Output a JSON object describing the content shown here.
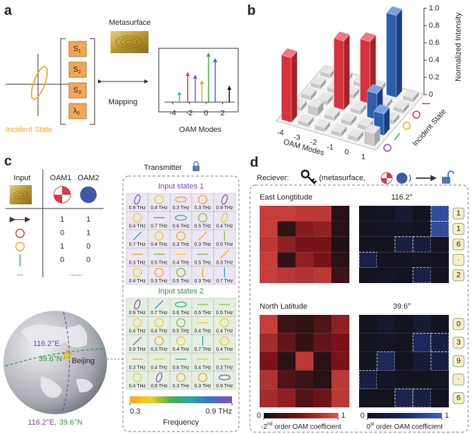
{
  "panel_a": {
    "label": "a",
    "metasurface": "Metasurface",
    "params": [
      {
        "base": "S",
        "sub": "1"
      },
      {
        "base": "S",
        "sub": "2"
      },
      {
        "base": "S",
        "sub": "3"
      },
      {
        "base": "λ",
        "sub": "0"
      }
    ],
    "mapping": "Mapping",
    "incident_state": "Incident State",
    "oam_modes": "OAM Modes",
    "spectrum": {
      "type": "stem",
      "x": [
        -3.2,
        -2.2,
        -1.3,
        -0.5,
        0.3,
        1.1,
        2.8
      ],
      "values": [
        0.2,
        0.55,
        0.5,
        0.4,
        0.9,
        0.8,
        0.3
      ],
      "colors": [
        "#3bbfd0",
        "#d83a4a",
        "#8a4fbf",
        "#f5a623",
        "#3aaa50",
        "#2d6fd0",
        "#111111"
      ],
      "xlim": [
        -5.5,
        3.7
      ],
      "xticks": [
        -4,
        -2,
        0,
        2
      ],
      "ylim": [
        0,
        1
      ]
    }
  },
  "panel_b": {
    "label": "b",
    "type": "bar3d",
    "zlabel": "Normalized Intensity",
    "xlabel": "OAM Modes",
    "ylabel": "Incident State",
    "categories": [
      -4,
      -3,
      -2,
      -1,
      0,
      1
    ],
    "values": [
      [
        0.05,
        0.05,
        0.05,
        0.05,
        0.95,
        0.05
      ],
      [
        0.05,
        0.05,
        0.05,
        0.72,
        0.05,
        0.05
      ],
      [
        0.05,
        0.05,
        0.8,
        0.05,
        0.3,
        0.05
      ],
      [
        0.05,
        0.1,
        0.05,
        0.05,
        0.05,
        0.25
      ],
      [
        0.75,
        0.05,
        0.05,
        0.05,
        0.05,
        0.15
      ]
    ],
    "state_colors": [
      "#d83a4a",
      "#d83a4a",
      "#f5a623",
      "#3aaa50",
      "#8a4fbf"
    ],
    "colors": {
      "negative": [
        "#d8323c",
        "#a82028",
        "#f07880"
      ],
      "positive": [
        "#2d5fb0",
        "#1d3f80",
        "#7aa2dc"
      ],
      "low": [
        "#c8c8c8",
        "#a4a4a4",
        "#e6e6e6"
      ]
    },
    "zlim": [
      0,
      1
    ],
    "zticks": [
      0,
      0.2,
      0.4,
      0.6,
      0.8,
      {
        "value": 1,
        "label": "1.0"
      }
    ]
  },
  "panel_c": {
    "label": "c",
    "table": {
      "headers": [
        "Input",
        "OAM1",
        "OAM2"
      ],
      "rows": [
        [
          1,
          1
        ],
        [
          0,
          1
        ],
        [
          1,
          0
        ],
        [
          0,
          0
        ]
      ],
      "ellipsis": [
        "...",
        "......"
      ]
    },
    "globe": {
      "lon": "116.2°E",
      "lat": "39.6°N",
      "city": "Beijing",
      "caption_lon": "116.2°E,",
      "caption_lat": "39.6°N"
    },
    "transmitter": "Transmitter",
    "grid1": {
      "title": "Input states 1",
      "cells": [
        [
          {
            "value": 0.9,
            "label": "0.9 THz"
          },
          {
            "value": 0.4,
            "label": "0.4 THz"
          },
          {
            "value": 0.3,
            "label": "0.3 THz"
          },
          {
            "value": 0.3,
            "label": "0.3 THz"
          },
          {
            "value": 0.9,
            "label": "0.9 THz"
          }
        ],
        [
          {
            "value": 0.4,
            "label": "0.4 THz"
          },
          {
            "value": 0.7,
            "label": "0.7 THz"
          },
          {
            "value": 0.6,
            "label": "0.6 THz"
          },
          {
            "value": 0.5,
            "label": "0.5 THz"
          },
          {
            "value": 0.4,
            "label": "0.4 THz"
          }
        ],
        [
          {
            "value": 0.7,
            "label": "0.7 THz"
          },
          {
            "value": 0.4,
            "label": "0.4 THz"
          },
          {
            "value": 0.3,
            "label": "0.3 THz"
          },
          {
            "value": 0.3,
            "label": "0.3 THz"
          },
          {
            "value": 0.5,
            "label": "0.5 THz"
          }
        ],
        [
          {
            "value": 0.3,
            "label": "0.3 THz"
          },
          {
            "value": 0.5,
            "label": "0.5 THz"
          },
          {
            "value": 0.4,
            "label": "0.4 THz"
          },
          {
            "value": 0.5,
            "label": "0.5 THz"
          },
          {
            "value": 0.3,
            "label": "0.3 THz"
          }
        ],
        [
          {
            "value": 0.4,
            "label": "0.4 THz"
          },
          {
            "value": 0.3,
            "label": "0.3 THz"
          },
          {
            "value": 0.5,
            "label": "0.5 THz"
          },
          {
            "value": 0.3,
            "label": "0.3 THz"
          },
          {
            "value": 0.7,
            "label": "0.7 THz"
          }
        ]
      ]
    },
    "grid2": {
      "title": "Input states 2",
      "cells": [
        [
          {
            "value": 0.9,
            "label": "0.9 THz"
          },
          {
            "value": 0.7,
            "label": "0.7 THz"
          },
          {
            "value": 0.6,
            "label": "0.6 THz"
          },
          {
            "value": 0.5,
            "label": "0.5 THz"
          },
          {
            "value": 0.5,
            "label": "0.5 THz"
          }
        ],
        [
          {
            "value": 0.4,
            "label": "0.4 THz"
          },
          {
            "value": 0.4,
            "label": "0.4 THz"
          },
          {
            "value": 0.5,
            "label": "0.5 THz"
          },
          {
            "value": 0.4,
            "label": "0.4 THz"
          },
          {
            "value": 0.4,
            "label": "0.4 THz"
          }
        ],
        [
          {
            "value": 0.9,
            "label": "0.9 THz"
          },
          {
            "value": 0.3,
            "label": "0.3 THz"
          },
          {
            "value": 0.4,
            "label": "0.4 THz"
          },
          {
            "value": 0.7,
            "label": "0.7 THz"
          },
          {
            "value": 0.4,
            "label": "0.4 THz"
          }
        ],
        [
          {
            "value": 0.3,
            "label": "0.3 THz"
          },
          {
            "value": 0.4,
            "label": "0.4 THz"
          },
          {
            "value": 0.6,
            "label": "0.6 THz"
          },
          {
            "value": 0.4,
            "label": "0.4 THz"
          },
          {
            "value": 0.3,
            "label": "0.3 THz"
          }
        ],
        [
          {
            "value": 0.4,
            "label": "0.4 THz"
          },
          {
            "value": 0.9,
            "label": "0.9 THz"
          },
          {
            "value": 0.3,
            "label": "0.3 THz"
          },
          {
            "value": 0.3,
            "label": "0.3 THz"
          },
          {
            "value": 0.9,
            "label": "0.9 THz"
          }
        ]
      ]
    },
    "colorbar": {
      "range": [
        0.3,
        0.9
      ],
      "ticks": [
        0.3,
        {
          "value": 0.9,
          "label": "0.9 THz"
        }
      ],
      "label": "Frequency"
    }
  },
  "panel_d": {
    "label": "d",
    "receiver": "Reciever:",
    "receiver_open": "(metasurface,",
    "receiver_close": ")",
    "east": {
      "title": "East Longtitude",
      "value": "116.2°",
      "digits": [
        "1",
        "1",
        "6",
        "·",
        "2"
      ],
      "neg": [
        [
          0.85,
          0.85,
          0.8,
          0.8,
          0.1
        ],
        [
          0.85,
          0.15,
          0.55,
          0.6,
          0.1
        ],
        [
          0.8,
          0.6,
          0.5,
          0.5,
          0.05
        ],
        [
          0.85,
          0.15,
          0.6,
          0.5,
          0.1
        ],
        [
          0.85,
          0.8,
          0.75,
          0.8,
          0.2
        ]
      ],
      "zero": [
        [
          0.05,
          0.1,
          0.2,
          0.05,
          0.8
        ],
        [
          0.05,
          0.1,
          0.1,
          0.05,
          0.8
        ],
        [
          0.05,
          0.05,
          0.3,
          0.25,
          0.1
        ],
        [
          0.35,
          0.05,
          0.05,
          0.1,
          0.05
        ],
        [
          0.05,
          0.1,
          0.05,
          0.35,
          0.05
        ]
      ]
    },
    "north": {
      "title": "North Latitude",
      "value": "39.6°",
      "digits": [
        "0",
        "3",
        "9",
        "·",
        "6"
      ],
      "neg": [
        [
          0.85,
          0.2,
          0.15,
          0.3,
          0.6
        ],
        [
          0.7,
          0.4,
          0.15,
          0.4,
          0.5
        ],
        [
          0.5,
          0.1,
          0.8,
          0.1,
          0.5
        ],
        [
          0.75,
          0.3,
          0.2,
          0.1,
          0.8
        ],
        [
          0.7,
          0.6,
          0.3,
          0.45,
          0.8
        ]
      ],
      "zero": [
        [
          0.05,
          0.15,
          0.05,
          0.2,
          0.05
        ],
        [
          0.05,
          0.1,
          0.05,
          0.5,
          0.3
        ],
        [
          0.05,
          0.5,
          0.05,
          0.2,
          0.3
        ],
        [
          0.3,
          0.1,
          0.05,
          0.05,
          0.1
        ],
        [
          0.05,
          0.05,
          0.4,
          0.3,
          0.05
        ]
      ]
    },
    "colorbar_neg": {
      "range": [
        0,
        1
      ],
      "ticks": [
        0,
        1
      ],
      "label": [
        "-2",
        "nd",
        " order OAM coefficient"
      ]
    },
    "colorbar_zero": {
      "range": [
        0,
        1
      ],
      "ticks": [
        0,
        1
      ],
      "label": [
        "0",
        "st",
        " order OAM coefficient"
      ]
    }
  }
}
